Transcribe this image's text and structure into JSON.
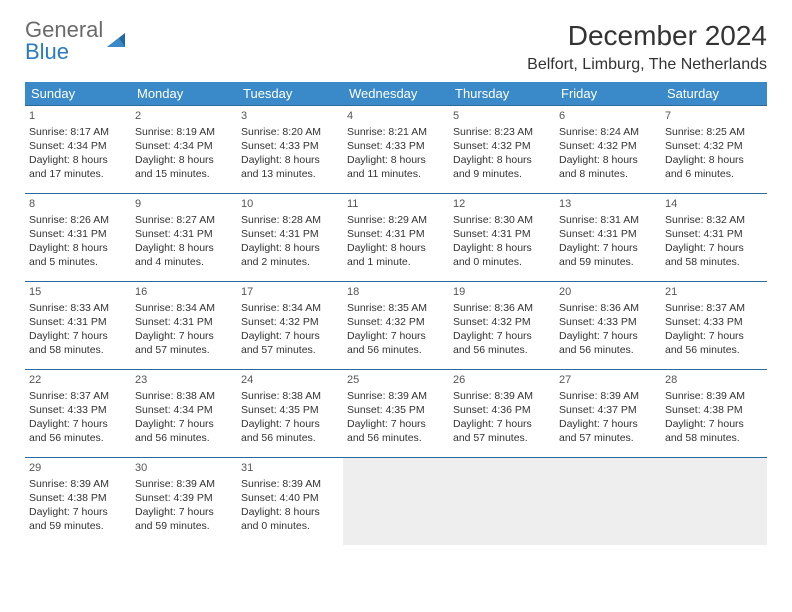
{
  "logo": {
    "word1": "General",
    "word2": "Blue"
  },
  "title": "December 2024",
  "location": "Belfort, Limburg, The Netherlands",
  "colors": {
    "header_bg": "#3a89c9",
    "header_text": "#ffffff",
    "row_border": "#2a6a9a",
    "pad_bg": "#eeeeee",
    "text": "#333333",
    "logo_gray": "#6b6b6b",
    "logo_blue": "#2a7bbf"
  },
  "day_headers": [
    "Sunday",
    "Monday",
    "Tuesday",
    "Wednesday",
    "Thursday",
    "Friday",
    "Saturday"
  ],
  "weeks": [
    [
      {
        "n": "1",
        "sr": "8:17 AM",
        "ss": "4:34 PM",
        "dl": "8 hours and 17 minutes."
      },
      {
        "n": "2",
        "sr": "8:19 AM",
        "ss": "4:34 PM",
        "dl": "8 hours and 15 minutes."
      },
      {
        "n": "3",
        "sr": "8:20 AM",
        "ss": "4:33 PM",
        "dl": "8 hours and 13 minutes."
      },
      {
        "n": "4",
        "sr": "8:21 AM",
        "ss": "4:33 PM",
        "dl": "8 hours and 11 minutes."
      },
      {
        "n": "5",
        "sr": "8:23 AM",
        "ss": "4:32 PM",
        "dl": "8 hours and 9 minutes."
      },
      {
        "n": "6",
        "sr": "8:24 AM",
        "ss": "4:32 PM",
        "dl": "8 hours and 8 minutes."
      },
      {
        "n": "7",
        "sr": "8:25 AM",
        "ss": "4:32 PM",
        "dl": "8 hours and 6 minutes."
      }
    ],
    [
      {
        "n": "8",
        "sr": "8:26 AM",
        "ss": "4:31 PM",
        "dl": "8 hours and 5 minutes."
      },
      {
        "n": "9",
        "sr": "8:27 AM",
        "ss": "4:31 PM",
        "dl": "8 hours and 4 minutes."
      },
      {
        "n": "10",
        "sr": "8:28 AM",
        "ss": "4:31 PM",
        "dl": "8 hours and 2 minutes."
      },
      {
        "n": "11",
        "sr": "8:29 AM",
        "ss": "4:31 PM",
        "dl": "8 hours and 1 minute."
      },
      {
        "n": "12",
        "sr": "8:30 AM",
        "ss": "4:31 PM",
        "dl": "8 hours and 0 minutes."
      },
      {
        "n": "13",
        "sr": "8:31 AM",
        "ss": "4:31 PM",
        "dl": "7 hours and 59 minutes."
      },
      {
        "n": "14",
        "sr": "8:32 AM",
        "ss": "4:31 PM",
        "dl": "7 hours and 58 minutes."
      }
    ],
    [
      {
        "n": "15",
        "sr": "8:33 AM",
        "ss": "4:31 PM",
        "dl": "7 hours and 58 minutes."
      },
      {
        "n": "16",
        "sr": "8:34 AM",
        "ss": "4:31 PM",
        "dl": "7 hours and 57 minutes."
      },
      {
        "n": "17",
        "sr": "8:34 AM",
        "ss": "4:32 PM",
        "dl": "7 hours and 57 minutes."
      },
      {
        "n": "18",
        "sr": "8:35 AM",
        "ss": "4:32 PM",
        "dl": "7 hours and 56 minutes."
      },
      {
        "n": "19",
        "sr": "8:36 AM",
        "ss": "4:32 PM",
        "dl": "7 hours and 56 minutes."
      },
      {
        "n": "20",
        "sr": "8:36 AM",
        "ss": "4:33 PM",
        "dl": "7 hours and 56 minutes."
      },
      {
        "n": "21",
        "sr": "8:37 AM",
        "ss": "4:33 PM",
        "dl": "7 hours and 56 minutes."
      }
    ],
    [
      {
        "n": "22",
        "sr": "8:37 AM",
        "ss": "4:33 PM",
        "dl": "7 hours and 56 minutes."
      },
      {
        "n": "23",
        "sr": "8:38 AM",
        "ss": "4:34 PM",
        "dl": "7 hours and 56 minutes."
      },
      {
        "n": "24",
        "sr": "8:38 AM",
        "ss": "4:35 PM",
        "dl": "7 hours and 56 minutes."
      },
      {
        "n": "25",
        "sr": "8:39 AM",
        "ss": "4:35 PM",
        "dl": "7 hours and 56 minutes."
      },
      {
        "n": "26",
        "sr": "8:39 AM",
        "ss": "4:36 PM",
        "dl": "7 hours and 57 minutes."
      },
      {
        "n": "27",
        "sr": "8:39 AM",
        "ss": "4:37 PM",
        "dl": "7 hours and 57 minutes."
      },
      {
        "n": "28",
        "sr": "8:39 AM",
        "ss": "4:38 PM",
        "dl": "7 hours and 58 minutes."
      }
    ],
    [
      {
        "n": "29",
        "sr": "8:39 AM",
        "ss": "4:38 PM",
        "dl": "7 hours and 59 minutes."
      },
      {
        "n": "30",
        "sr": "8:39 AM",
        "ss": "4:39 PM",
        "dl": "7 hours and 59 minutes."
      },
      {
        "n": "31",
        "sr": "8:39 AM",
        "ss": "4:40 PM",
        "dl": "8 hours and 0 minutes."
      },
      null,
      null,
      null,
      null
    ]
  ],
  "labels": {
    "sunrise": "Sunrise:",
    "sunset": "Sunset:",
    "daylight": "Daylight:"
  }
}
